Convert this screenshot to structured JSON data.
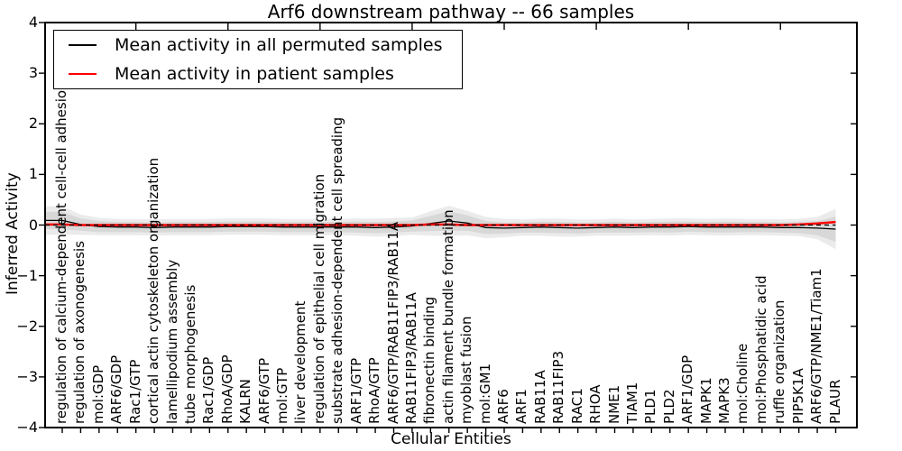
{
  "title": "Arf6 downstream pathway -- 66 samples",
  "axes": {
    "ylabel": "Inferred Activity",
    "xlabel": "Cellular Entities",
    "ytick_labels": [
      "4",
      "3",
      "2",
      "1",
      "0",
      "−1",
      "−2",
      "−3",
      "−4"
    ],
    "ytick_values": [
      4,
      3,
      2,
      1,
      0,
      -1,
      -2,
      -3,
      -4
    ]
  },
  "legend": {
    "items": [
      {
        "label": "Mean activity in all permuted samples",
        "color": "#000000"
      },
      {
        "label": "Mean activity in patient samples",
        "color": "#ff0000"
      }
    ]
  },
  "colors": {
    "permuted_line": "#000000",
    "patient_line": "#ff0000",
    "zero_line": "#000000",
    "band_outer": "#ebebeb",
    "band_inner": "#d8d8d8",
    "frame": "#000000"
  },
  "chart_data": {
    "type": "line",
    "title": "Arf6 downstream pathway -- 66 samples",
    "xlabel": "Cellular Entities",
    "ylabel": "Inferred Activity",
    "ylim": [
      -4,
      4
    ],
    "grid": false,
    "legend_position": "upper left",
    "categories": [
      "regulation of calcium-dependent cell-cell adhesion",
      "regulation of axonogenesis",
      "mol:GDP",
      "ARF6/GDP",
      "Rac1/GTP",
      "cortical actin cytoskeleton organization",
      "lamellipodium assembly",
      "tube morphogenesis",
      "Rac1/GDP",
      "RhoA/GDP",
      "KALRN",
      "ARF6/GTP",
      "mol:GTP",
      "liver development",
      "regulation of epithelial cell migration",
      "substrate adhesion-dependent cell spreading",
      "ARF1/GTP",
      "RhoA/GTP",
      "ARF6/GTP/RAB11FIP3/RAB11A",
      "RAB11FIP3/RAB11A",
      "fibronectin binding",
      "actin filament bundle formation",
      "myoblast fusion",
      "mol:GM1",
      "ARF6",
      "ARF1",
      "RAB11A",
      "RAB11FIP3",
      "RAC1",
      "RHOA",
      "NME1",
      "TIAM1",
      "PLD1",
      "PLD2",
      "ARF1/GDP",
      "MAPK1",
      "MAPK3",
      "mol:Choline",
      "mol:Phosphatidic acid",
      "ruffle organization",
      "PIP5K1A",
      "ARF6/GTP/NME1/Tiam1",
      "PLAUR"
    ],
    "series": [
      {
        "name": "Mean activity in all permuted samples",
        "color": "#000000",
        "style": "solid",
        "values": [
          0.09,
          0.01,
          -0.03,
          -0.04,
          -0.04,
          -0.05,
          -0.04,
          -0.04,
          -0.04,
          -0.03,
          -0.03,
          -0.03,
          -0.04,
          -0.04,
          -0.04,
          -0.04,
          -0.04,
          -0.05,
          -0.04,
          -0.02,
          0.03,
          0.08,
          0.04,
          -0.05,
          -0.06,
          -0.05,
          -0.04,
          -0.05,
          -0.06,
          -0.05,
          -0.04,
          -0.05,
          -0.04,
          -0.04,
          -0.03,
          -0.04,
          -0.04,
          -0.04,
          -0.04,
          -0.05,
          -0.05,
          -0.06,
          -0.08
        ]
      },
      {
        "name": "Mean activity in patient samples",
        "color": "#ff0000",
        "style": "solid",
        "values": [
          0.01,
          0,
          0,
          0,
          0,
          0,
          0,
          0,
          0,
          0,
          0,
          0,
          0,
          0,
          0,
          0,
          0,
          0,
          0,
          0,
          0.01,
          0.01,
          0,
          0,
          0,
          0,
          0,
          0,
          0,
          0,
          0,
          0,
          0,
          0,
          0,
          0,
          0,
          0,
          0,
          0,
          0.01,
          0.03,
          0.06
        ]
      }
    ],
    "zero_line": {
      "y": 0,
      "style": "dashed",
      "color": "#000000"
    },
    "band": {
      "name": "permuted activity spread",
      "center_series": "Mean activity in all permuted samples",
      "outer_halfwidth": [
        0.28,
        0.2,
        0.17,
        0.16,
        0.16,
        0.16,
        0.16,
        0.16,
        0.16,
        0.16,
        0.16,
        0.16,
        0.16,
        0.16,
        0.16,
        0.16,
        0.17,
        0.18,
        0.18,
        0.17,
        0.24,
        0.3,
        0.24,
        0.21,
        0.18,
        0.16,
        0.17,
        0.18,
        0.17,
        0.16,
        0.17,
        0.16,
        0.16,
        0.17,
        0.16,
        0.16,
        0.17,
        0.16,
        0.16,
        0.16,
        0.17,
        0.22,
        0.4
      ],
      "inner_halfwidth": [
        0.17,
        0.12,
        0.11,
        0.1,
        0.1,
        0.1,
        0.1,
        0.1,
        0.1,
        0.1,
        0.1,
        0.1,
        0.1,
        0.1,
        0.1,
        0.1,
        0.11,
        0.11,
        0.11,
        0.11,
        0.15,
        0.19,
        0.15,
        0.13,
        0.11,
        0.1,
        0.11,
        0.11,
        0.11,
        0.1,
        0.11,
        0.1,
        0.1,
        0.11,
        0.1,
        0.1,
        0.11,
        0.1,
        0.1,
        0.1,
        0.11,
        0.14,
        0.25
      ]
    }
  }
}
